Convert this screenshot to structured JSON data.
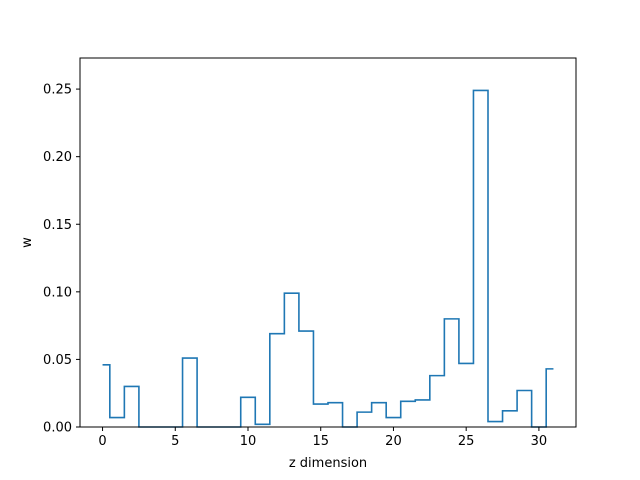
{
  "chart_data": {
    "type": "line",
    "style": "step",
    "title": "",
    "xlabel": "z dimension",
    "ylabel": "w",
    "xlim": [
      -1.55,
      32.55
    ],
    "ylim": [
      0,
      0.273
    ],
    "xticks": [
      0,
      5,
      10,
      15,
      20,
      25,
      30
    ],
    "xtick_labels": [
      "0",
      "5",
      "10",
      "15",
      "20",
      "25",
      "30"
    ],
    "yticks": [
      0.0,
      0.05,
      0.1,
      0.15,
      0.2,
      0.25
    ],
    "ytick_labels": [
      "0.00",
      "0.05",
      "0.10",
      "0.15",
      "0.20",
      "0.25"
    ],
    "grid": false,
    "legend": "none",
    "series": [
      {
        "color": "#1f77b4",
        "x": [
          0,
          1,
          2,
          3,
          4,
          5,
          6,
          7,
          8,
          9,
          10,
          11,
          12,
          13,
          14,
          15,
          16,
          17,
          18,
          19,
          20,
          21,
          22,
          23,
          24,
          25,
          26,
          27,
          28,
          29,
          30,
          31
        ],
        "values": [
          0.046,
          0.007,
          0.03,
          0.0,
          0.0,
          0.0,
          0.051,
          0.0,
          0.0,
          0.0,
          0.022,
          0.002,
          0.069,
          0.099,
          0.071,
          0.017,
          0.018,
          0.0,
          0.011,
          0.018,
          0.007,
          0.019,
          0.02,
          0.038,
          0.08,
          0.047,
          0.249,
          0.004,
          0.012,
          0.027,
          0.0,
          0.043
        ]
      }
    ]
  }
}
